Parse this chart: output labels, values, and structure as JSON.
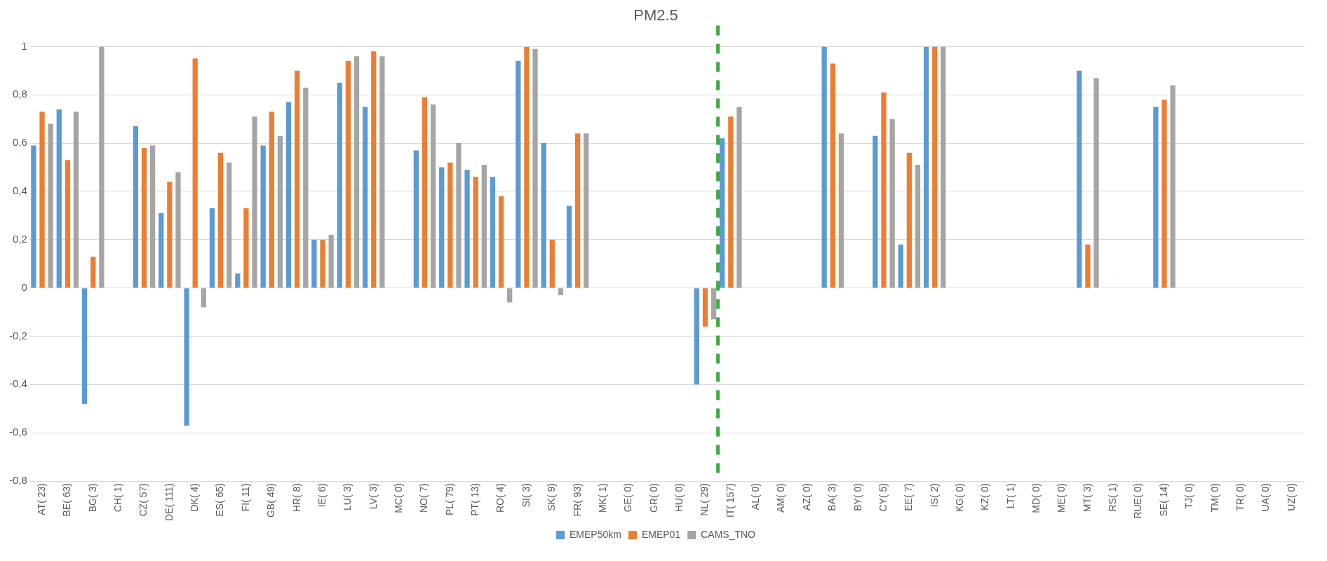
{
  "chart_data": {
    "type": "bar",
    "title": "PM2.5",
    "categories": [
      "AT( 23)",
      "BE( 63)",
      "BG( 3)",
      "CH( 1)",
      "CZ( 57)",
      "DE( 111)",
      "DK( 4)",
      "ES( 65)",
      "FI( 11)",
      "GB( 49)",
      "HR( 8)",
      "IE( 6)",
      "LU( 3)",
      "LV( 3)",
      "MC( 0)",
      "NO( 7)",
      "PL( 79)",
      "PT( 13)",
      "RO( 4)",
      "SI( 3)",
      "SK( 9)",
      "FR( 93)",
      "MK( 1)",
      "GE( 0)",
      "GR( 0)",
      "HU( 0)",
      "NL( 29)",
      "IT( 157)",
      "AL( 0)",
      "AM( 0)",
      "AZ( 0)",
      "BA( 3)",
      "BY( 0)",
      "CY( 5)",
      "EE( 7)",
      "IS( 2)",
      "KG( 0)",
      "KZ( 0)",
      "LT( 1)",
      "MD( 0)",
      "ME( 0)",
      "MT( 3)",
      "RS( 1)",
      "RUE( 0)",
      "SE( 14)",
      "TJ( 0)",
      "TM( 0)",
      "TR( 0)",
      "UA( 0)",
      "UZ( 0)"
    ],
    "series": [
      {
        "name": "EMEP50km",
        "color": "#5b9bd5",
        "values": [
          0.59,
          0.74,
          -0.48,
          null,
          0.67,
          0.31,
          -0.57,
          0.33,
          0.06,
          0.59,
          0.77,
          0.2,
          0.85,
          0.75,
          null,
          0.57,
          0.5,
          0.49,
          0.46,
          0.94,
          0.6,
          0.34,
          null,
          null,
          null,
          null,
          -0.4,
          0.62,
          null,
          null,
          null,
          1.0,
          null,
          0.63,
          0.18,
          1.0,
          null,
          null,
          null,
          null,
          null,
          0.9,
          null,
          null,
          0.75,
          null,
          null,
          null,
          null,
          null
        ]
      },
      {
        "name": "EMEP01",
        "color": "#ed7d31",
        "values": [
          0.73,
          0.53,
          0.13,
          null,
          0.58,
          0.44,
          0.95,
          0.56,
          0.33,
          0.73,
          0.9,
          0.2,
          0.94,
          0.98,
          null,
          0.79,
          0.52,
          0.46,
          0.38,
          1.0,
          0.2,
          0.64,
          null,
          null,
          null,
          null,
          -0.16,
          0.71,
          null,
          null,
          null,
          0.93,
          null,
          0.81,
          0.56,
          1.0,
          null,
          null,
          null,
          null,
          null,
          0.18,
          null,
          null,
          0.78,
          null,
          null,
          null,
          null,
          null
        ]
      },
      {
        "name": "CAMS_TNO",
        "color": "#a5a5a5",
        "values": [
          0.68,
          0.73,
          1.0,
          null,
          0.59,
          0.48,
          -0.08,
          0.52,
          0.71,
          0.63,
          0.83,
          0.22,
          0.96,
          0.96,
          null,
          0.76,
          0.6,
          0.51,
          -0.06,
          0.99,
          -0.03,
          0.64,
          null,
          null,
          null,
          null,
          -0.13,
          0.75,
          null,
          null,
          null,
          0.64,
          null,
          0.7,
          0.51,
          1.0,
          null,
          null,
          null,
          null,
          null,
          0.87,
          null,
          null,
          0.84,
          null,
          null,
          null,
          null,
          null
        ]
      }
    ],
    "ylim": [
      -0.8,
      1
    ],
    "yticks": [
      {
        "value": -0.8,
        "label": "-0,8"
      },
      {
        "value": -0.6,
        "label": "-0,6"
      },
      {
        "value": -0.4,
        "label": "-0,4"
      },
      {
        "value": -0.2,
        "label": "-0,2"
      },
      {
        "value": 0,
        "label": "0"
      },
      {
        "value": 0.2,
        "label": "0,2"
      },
      {
        "value": 0.4,
        "label": "0,4"
      },
      {
        "value": 0.6,
        "label": "0,6"
      },
      {
        "value": 0.8,
        "label": "0,8"
      },
      {
        "value": 1,
        "label": "1"
      }
    ],
    "ref_lines": [
      {
        "axis": "x",
        "value": "IT( 157)",
        "color": "#3daa3d",
        "line_style": "dashed"
      }
    ],
    "grid": "y",
    "legend": "bottom"
  }
}
